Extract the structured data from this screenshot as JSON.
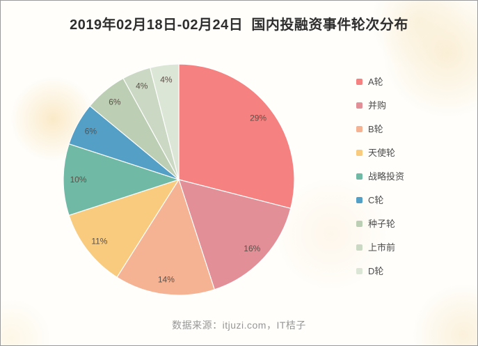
{
  "title": "2019年02月18日-02月24日  国内投融资事件轮次分布",
  "footer": "数据来源：itjuzi.com，IT桔子",
  "chart_data": {
    "type": "pie",
    "title": "2019年02月18日-02月24日 国内投融资事件轮次分布",
    "legend_position": "right",
    "direction": "clockwise",
    "start_angle": "top",
    "label_format": "percent-inside",
    "slices": [
      {
        "name": "A轮",
        "value": 29,
        "label": "29%",
        "color": "#f58181"
      },
      {
        "name": "并购",
        "value": 16,
        "label": "16%",
        "color": "#e28f98"
      },
      {
        "name": "B轮",
        "value": 14,
        "label": "14%",
        "color": "#f5b394"
      },
      {
        "name": "天使轮",
        "value": 11,
        "label": "11%",
        "color": "#f8cb7e"
      },
      {
        "name": "战略投资",
        "value": 10,
        "label": "10%",
        "color": "#6fb9a5"
      },
      {
        "name": "C轮",
        "value": 6,
        "label": "6%",
        "color": "#549fc6"
      },
      {
        "name": "种子轮",
        "value": 6,
        "label": "6%",
        "color": "#bccfb4"
      },
      {
        "name": "上市前",
        "value": 4,
        "label": "4%",
        "color": "#cbd9c4"
      },
      {
        "name": "D轮",
        "value": 4,
        "label": "4%",
        "color": "#dce6d6"
      }
    ]
  }
}
